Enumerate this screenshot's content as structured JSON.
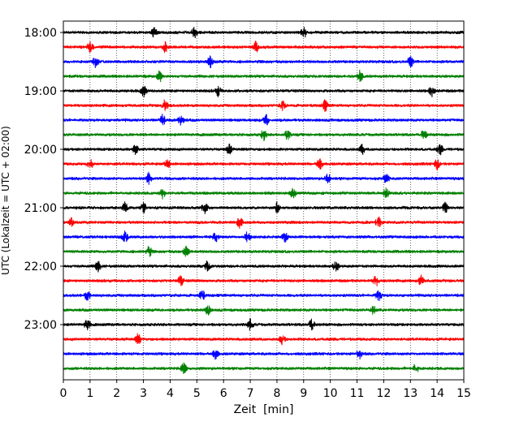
{
  "chart_data": {
    "type": "line",
    "title": "",
    "xlabel": "Zeit  [min]",
    "ylabel": "UTC (Lokalzeit = UTC + 02:00)",
    "xlim": [
      0,
      15
    ],
    "x_ticks": [
      0,
      1,
      2,
      3,
      4,
      5,
      6,
      7,
      8,
      9,
      10,
      11,
      12,
      13,
      14,
      15
    ],
    "y_tick_labels": [
      "18:00",
      "19:00",
      "20:00",
      "21:00",
      "22:00",
      "23:00"
    ],
    "grid_x": true,
    "trace_colors": [
      "#000000",
      "#ff0000",
      "#0000ff",
      "#008000"
    ],
    "traces": [
      {
        "start": "18:00",
        "color": "#000000"
      },
      {
        "start": "18:15",
        "color": "#ff0000"
      },
      {
        "start": "18:30",
        "color": "#0000ff"
      },
      {
        "start": "18:45",
        "color": "#008000"
      },
      {
        "start": "19:00",
        "color": "#000000"
      },
      {
        "start": "19:15",
        "color": "#ff0000"
      },
      {
        "start": "19:30",
        "color": "#0000ff"
      },
      {
        "start": "19:45",
        "color": "#008000"
      },
      {
        "start": "20:00",
        "color": "#000000"
      },
      {
        "start": "20:15",
        "color": "#ff0000"
      },
      {
        "start": "20:30",
        "color": "#0000ff"
      },
      {
        "start": "20:45",
        "color": "#008000"
      },
      {
        "start": "21:00",
        "color": "#000000"
      },
      {
        "start": "21:15",
        "color": "#ff0000"
      },
      {
        "start": "21:30",
        "color": "#0000ff"
      },
      {
        "start": "21:45",
        "color": "#008000"
      },
      {
        "start": "22:00",
        "color": "#000000"
      },
      {
        "start": "22:15",
        "color": "#ff0000"
      },
      {
        "start": "22:30",
        "color": "#0000ff"
      },
      {
        "start": "22:45",
        "color": "#008000"
      },
      {
        "start": "23:00",
        "color": "#000000"
      },
      {
        "start": "23:15",
        "color": "#ff0000"
      },
      {
        "start": "23:30",
        "color": "#0000ff"
      },
      {
        "start": "23:45",
        "color": "#008000"
      }
    ],
    "spikes_min": [
      [
        3.4,
        4.9,
        9.0
      ],
      [
        1.0,
        3.8,
        7.2
      ],
      [
        1.2,
        5.5,
        13.0
      ],
      [
        3.6,
        11.1
      ],
      [
        3.0,
        5.8,
        13.8
      ],
      [
        3.8,
        8.2,
        9.8
      ],
      [
        3.7,
        4.4,
        7.6
      ],
      [
        7.5,
        8.4,
        13.5
      ],
      [
        2.7,
        6.2,
        11.2,
        14.1
      ],
      [
        1.0,
        3.9,
        9.6,
        14.0
      ],
      [
        3.2,
        9.9,
        12.1
      ],
      [
        3.7,
        8.6,
        12.1
      ],
      [
        2.3,
        3.0,
        5.3,
        8.0,
        14.3
      ],
      [
        0.3,
        6.6,
        11.8
      ],
      [
        2.3,
        5.7,
        6.9,
        8.3
      ],
      [
        3.2,
        4.6
      ],
      [
        1.3,
        5.4,
        10.2
      ],
      [
        4.4,
        11.7,
        13.4
      ],
      [
        0.9,
        5.2,
        11.8
      ],
      [
        5.4,
        11.6
      ],
      [
        0.9,
        7.0,
        9.3
      ],
      [
        2.8,
        8.2
      ],
      [
        5.7,
        11.1
      ],
      [
        4.5,
        13.2
      ]
    ]
  }
}
